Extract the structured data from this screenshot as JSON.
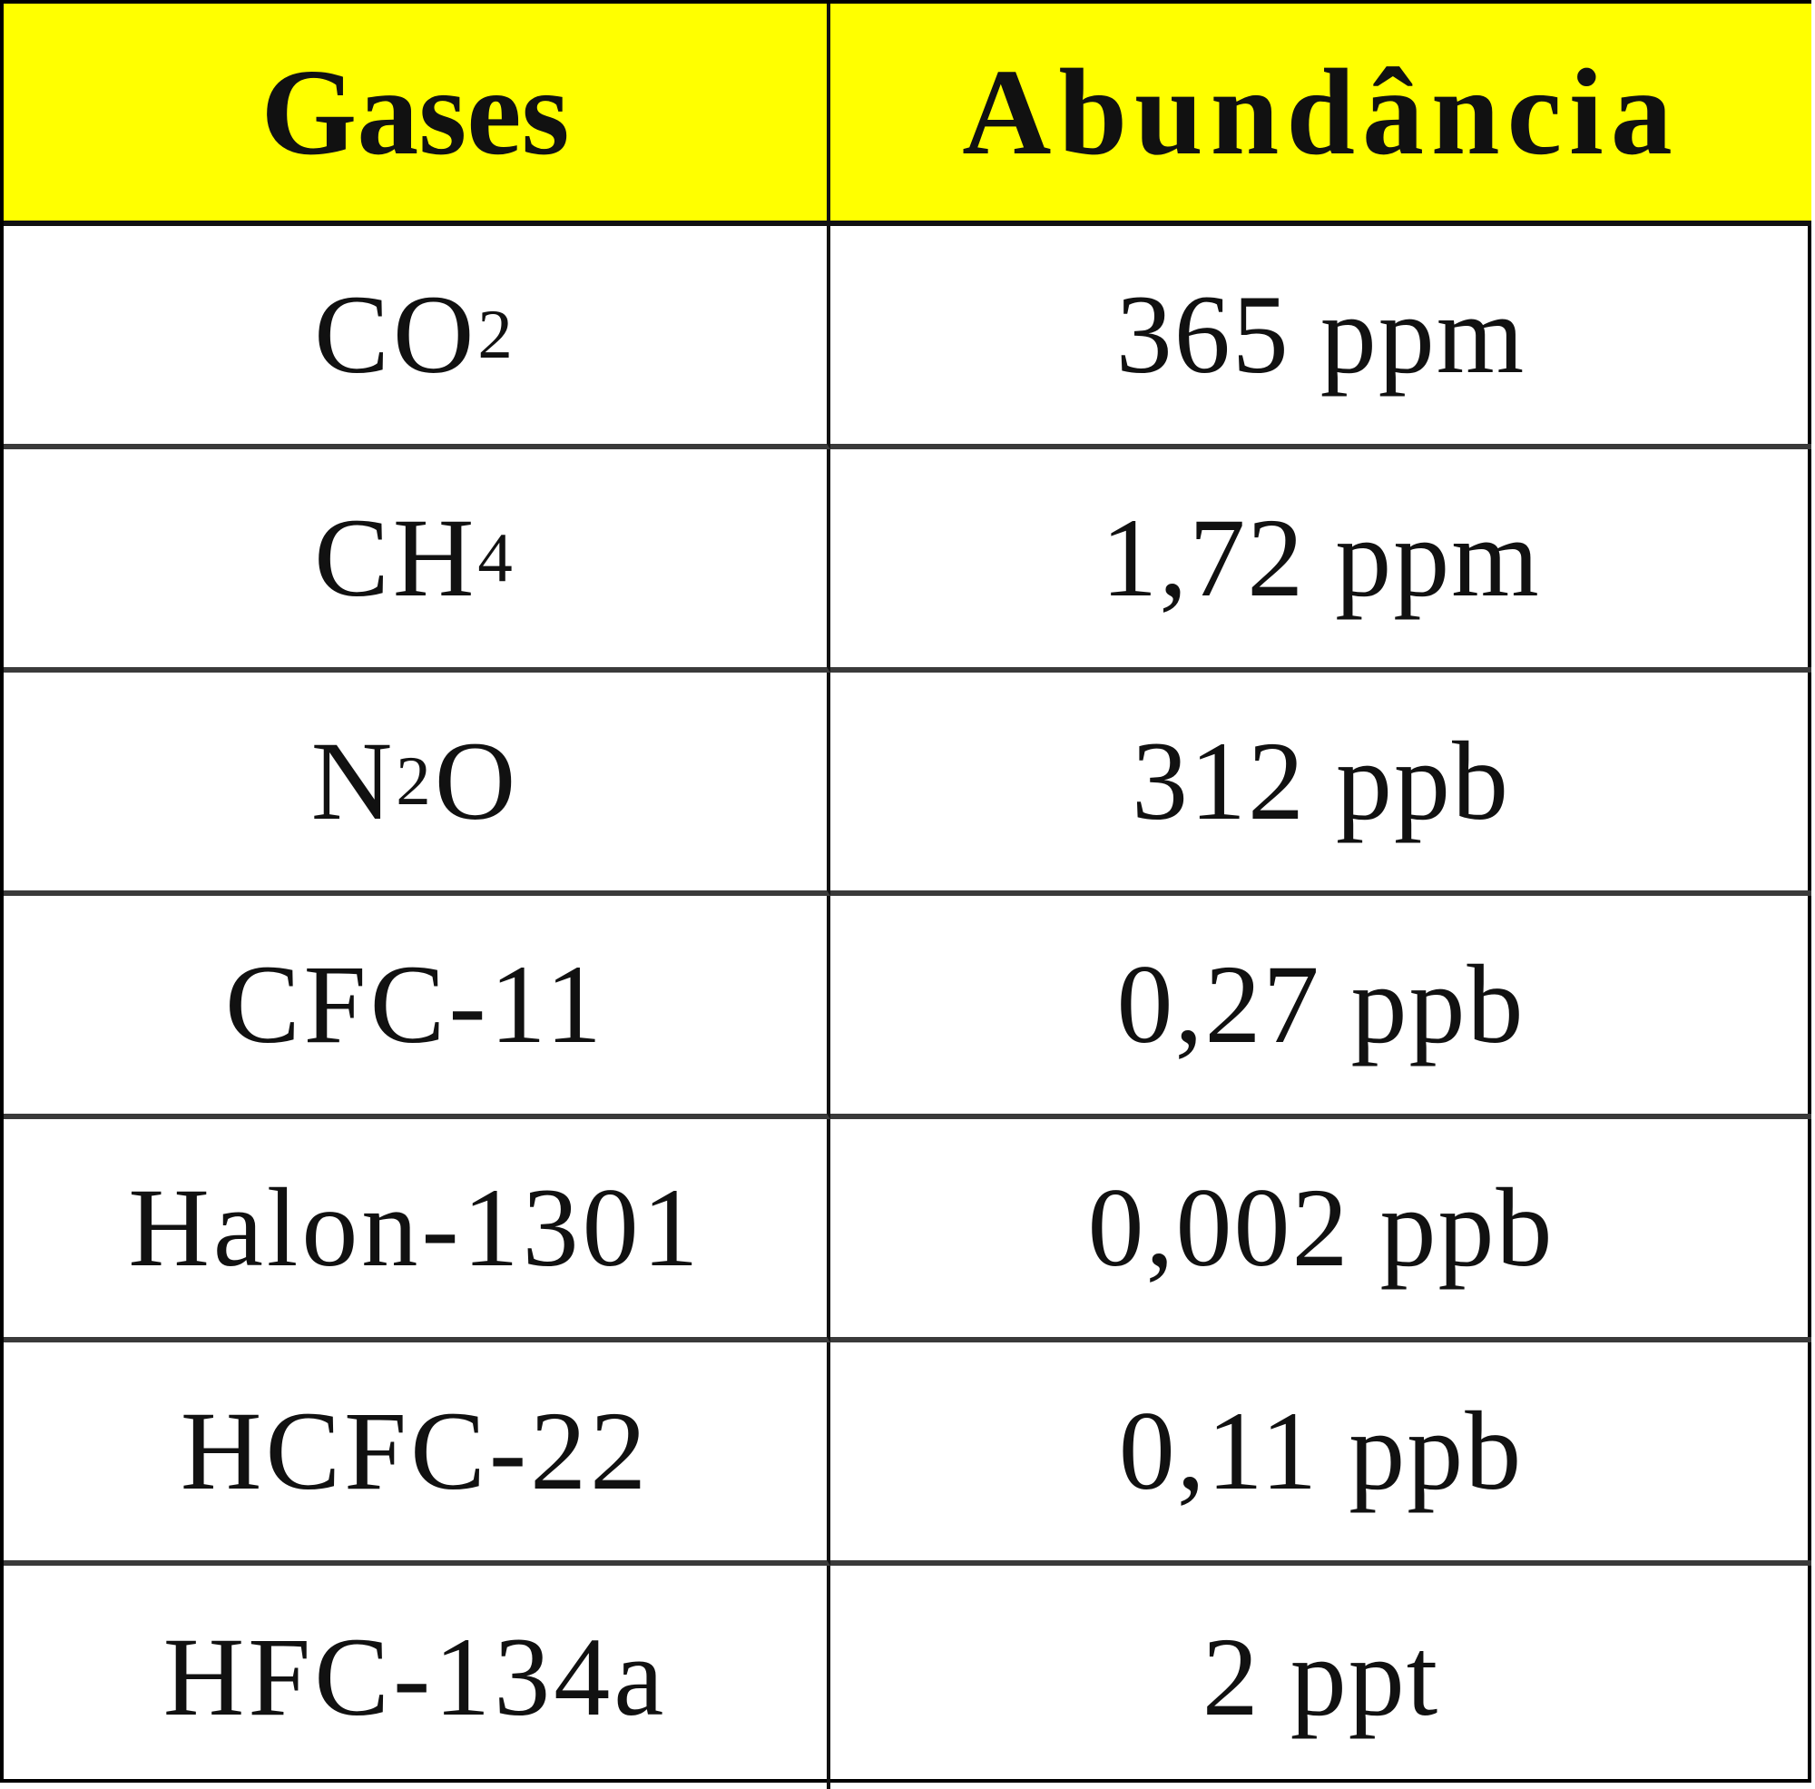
{
  "table": {
    "header_bg": "#ffff00",
    "columns": [
      "Gases",
      "Abundância"
    ],
    "rows": [
      {
        "gas": "CO",
        "sub": "2",
        "after": "",
        "value": "365 ppm"
      },
      {
        "gas": "CH",
        "sub": "4",
        "after": "",
        "value": "1,72 ppm"
      },
      {
        "gas": "N",
        "sub": "2",
        "after": "O",
        "value": "312 ppb"
      },
      {
        "gas": "CFC-11",
        "sub": "",
        "after": "",
        "value": "0,27 ppb"
      },
      {
        "gas": "Halon-1301",
        "sub": "",
        "after": "",
        "value": "0,002 ppb"
      },
      {
        "gas": "HCFC-22",
        "sub": "",
        "after": "",
        "value": "0,11 ppb"
      },
      {
        "gas": "HFC-134a",
        "sub": "",
        "after": "",
        "value": "2 ppt"
      }
    ]
  }
}
